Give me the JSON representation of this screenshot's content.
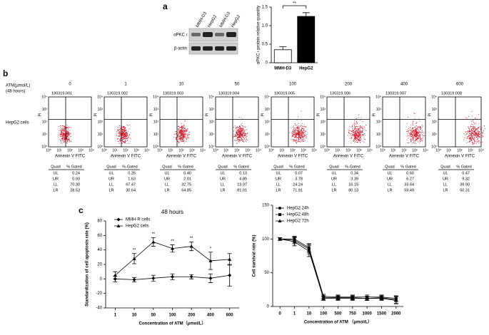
{
  "panel_labels": [
    "a",
    "b",
    "c"
  ],
  "blot": {
    "lanes": [
      "MMH-D3",
      "HepG2",
      "MMH-D3",
      "HepG2"
    ],
    "rows": [
      "αPKC ι",
      "β-actin"
    ]
  },
  "flow": {
    "concentration_label": "ATM(μmol/L)",
    "duration": "(48 hours)",
    "row_label": "HepG2 cells",
    "x_axis": "Annexin V FITC",
    "y_axis": "PI",
    "log_ticks": [
      "10⁰",
      "10¹",
      "10²",
      "10³",
      "10⁴"
    ],
    "quad_header": [
      "Quad",
      "% Gated"
    ],
    "quad_names": [
      "UL",
      "UR",
      "LL",
      "LR"
    ],
    "samples": [
      {
        "conc": "0",
        "id": "130319.001",
        "gated": [
          "0.24",
          "0.93",
          "70.30",
          "28.53"
        ]
      },
      {
        "conc": "1",
        "id": "130319.002",
        "gated": [
          "0.26",
          "1.63",
          "67.47",
          "30.64"
        ]
      },
      {
        "conc": "10",
        "id": "130319.003",
        "gated": [
          "0.40",
          "2.01",
          "32.75",
          "64.85"
        ]
      },
      {
        "conc": "50",
        "id": "130319.004",
        "gated": [
          "0.13",
          "4.89",
          "13.97",
          "81.01"
        ]
      },
      {
        "conc": "100",
        "id": "130319.005",
        "gated": [
          "0.07",
          "3.78",
          "24.24",
          "71.91"
        ]
      },
      {
        "conc": "200",
        "id": "130319.006",
        "gated": [
          "0.34",
          "3.39",
          "16.15",
          "80.13"
        ]
      },
      {
        "conc": "400",
        "id": "130319.007",
        "gated": [
          "0.60",
          "6.27",
          "33.64",
          "59.49"
        ]
      },
      {
        "conc": "600",
        "id": "130319.008",
        "gated": [
          "0.47",
          "9.32",
          "39.90",
          "50.31"
        ]
      }
    ]
  },
  "chart_data": [
    {
      "type": "bar",
      "ylabel": "αPKC ι protein relative quantity",
      "categories": [
        "MMH-D3",
        "HepG2"
      ],
      "values": [
        0.35,
        1.25
      ],
      "errors": [
        0.08,
        0.1
      ],
      "colors": [
        "#ffffff",
        "#000000"
      ],
      "ylim": [
        0,
        1.5
      ],
      "yticks": [
        0,
        0.5,
        {
          "value": 1,
          "label": "1.0"
        },
        1.5
      ],
      "significance": "**"
    },
    {
      "type": "line",
      "title": "48 hours",
      "xlabel": "Concentration of ATM（μmol/L）",
      "ylabel": "Standardization of cell apoptosis rate (%)",
      "categories": [
        "1",
        "10",
        "50",
        "100",
        "200",
        "400",
        "600"
      ],
      "series": [
        {
          "name": "MMH-R cells",
          "marker": "diamond",
          "values": [
            0,
            -1,
            1,
            3,
            3,
            1,
            5
          ],
          "errors": [
            4,
            3,
            4,
            4,
            3,
            6,
            15
          ]
        },
        {
          "name": "HepG2 cells",
          "marker": "triangle",
          "values": [
            5,
            28,
            51,
            42,
            45,
            25,
            27
          ],
          "errors": [
            5,
            7,
            6,
            5,
            6,
            12,
            8
          ]
        }
      ],
      "annotations": [
        {
          "at": "10",
          "text": "**"
        },
        {
          "at": "50",
          "text": "**"
        },
        {
          "at": "100",
          "text": "**"
        },
        {
          "at": "200",
          "text": "**"
        },
        {
          "at": "400",
          "text": "*"
        }
      ],
      "ylim": [
        -40,
        80
      ],
      "yticks": [
        -40,
        -20,
        0,
        20,
        40,
        60,
        80
      ]
    },
    {
      "type": "line",
      "xlabel": "Concentration of ATM （μmol/L）",
      "ylabel": "Cell survival rate (%)",
      "categories": [
        "0",
        "1",
        "10",
        "100",
        "500",
        "750",
        "1000",
        "1500",
        "2000"
      ],
      "series": [
        {
          "name": "HepG2 24h",
          "marker": "circle",
          "values": [
            100,
            100,
            87,
            15,
            14,
            14,
            14,
            14,
            12
          ],
          "errors": [
            2,
            4,
            6,
            3,
            3,
            3,
            3,
            3,
            4
          ]
        },
        {
          "name": "HepG2 48h",
          "marker": "square",
          "values": [
            100,
            98,
            85,
            13,
            13,
            13,
            12,
            13,
            10
          ],
          "errors": [
            2,
            5,
            7,
            3,
            3,
            3,
            3,
            3,
            5
          ]
        },
        {
          "name": "HepG2 72h",
          "marker": "triangle",
          "values": [
            100,
            96,
            82,
            12,
            12,
            12,
            12,
            12,
            9
          ],
          "errors": [
            2,
            6,
            8,
            3,
            3,
            3,
            3,
            3,
            5
          ]
        }
      ],
      "ylim": [
        0,
        150
      ],
      "yticks": [
        0,
        50,
        100,
        150
      ]
    }
  ]
}
